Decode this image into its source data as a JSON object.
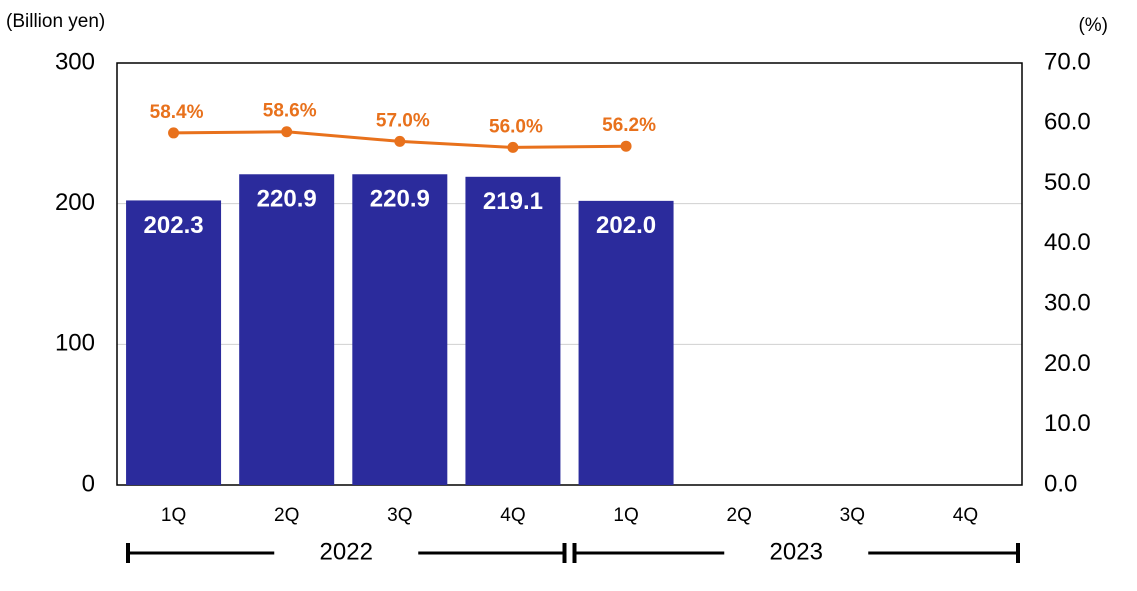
{
  "chart_data": {
    "type": "bar",
    "y_label": "(Billion yen)",
    "y2_label": "(%)",
    "categories": [
      "1Q",
      "2Q",
      "3Q",
      "4Q",
      "1Q",
      "2Q",
      "3Q",
      "4Q"
    ],
    "groups": [
      {
        "label": "2022",
        "span": 4
      },
      {
        "label": "2023",
        "span": 4
      }
    ],
    "series": [
      {
        "type": "bar",
        "color": "#2b2b9c",
        "values": [
          202.3,
          220.9,
          220.9,
          219.1,
          202.0,
          null,
          null,
          null
        ],
        "value_labels": [
          "202.3",
          "220.9",
          "220.9",
          "219.1",
          "202.0",
          null,
          null,
          null
        ]
      },
      {
        "type": "line",
        "axis": "y2",
        "color": "#e8711c",
        "values": [
          58.4,
          58.6,
          57.0,
          56.0,
          56.2,
          null,
          null,
          null
        ],
        "value_labels": [
          "58.4%",
          "58.6%",
          "57.0%",
          "56.0%",
          "56.2%",
          null,
          null,
          null
        ]
      }
    ],
    "ylim": [
      0,
      300
    ],
    "yticks": [
      0,
      100,
      200,
      300
    ],
    "y2lim": [
      0,
      70
    ],
    "y2ticks": [
      {
        "value": 0,
        "label": "0.0"
      },
      {
        "value": 10,
        "label": "10.0"
      },
      {
        "value": 20,
        "label": "20.0"
      },
      {
        "value": 30,
        "label": "30.0"
      },
      {
        "value": 40,
        "label": "40.0"
      },
      {
        "value": 50,
        "label": "50.0"
      },
      {
        "value": 60,
        "label": "60.0"
      },
      {
        "value": 70,
        "label": "70.0"
      }
    ],
    "grid": true
  }
}
